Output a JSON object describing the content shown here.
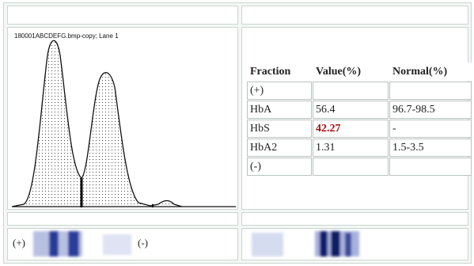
{
  "header": {
    "file_label": "180001ABCDEFG.bmp-copy; Lane 1"
  },
  "table": {
    "columns": [
      "Fraction",
      "Value(%)",
      "Normal(%)"
    ],
    "rows": [
      {
        "fraction": "(+)"
      },
      {
        "fraction": "HbA",
        "value": "56.4",
        "normal": "96.7-98.5"
      },
      {
        "fraction": "HbS",
        "value": "42.27",
        "normal": "-",
        "highlight": true
      },
      {
        "fraction": "HbA2",
        "value": "1.31",
        "normal": "1.5-3.5"
      },
      {
        "fraction": "(-)"
      }
    ]
  },
  "bands": {
    "anode": "(+)",
    "cathode": "(-)"
  }
}
